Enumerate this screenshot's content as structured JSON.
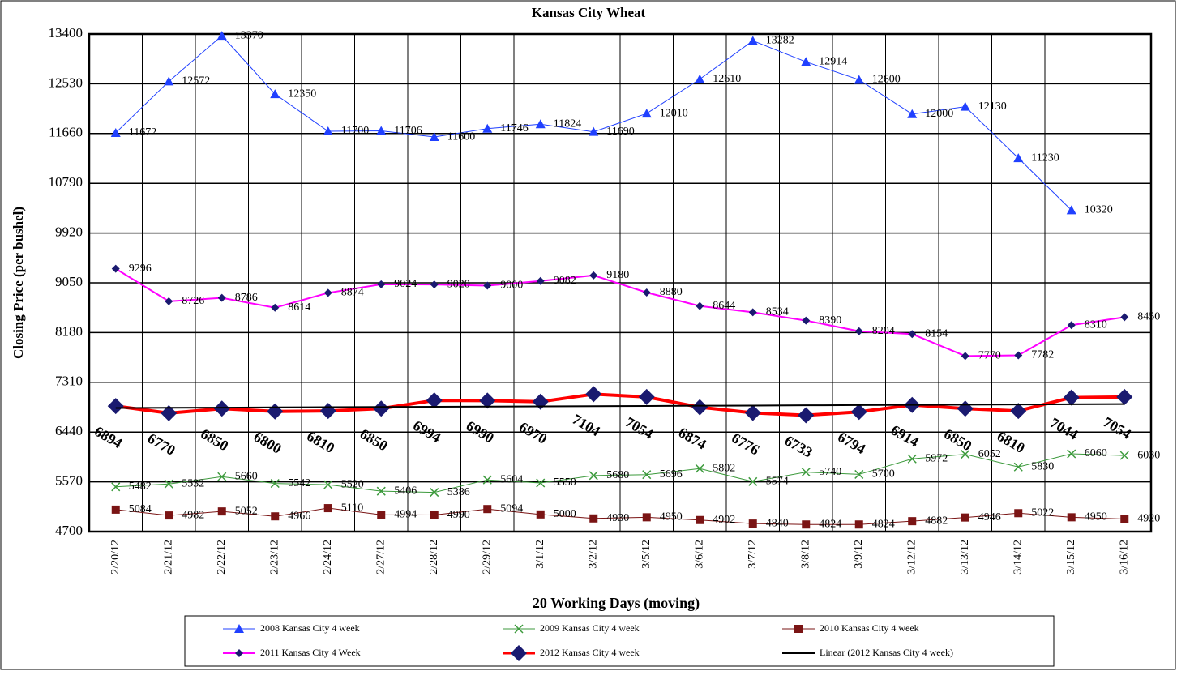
{
  "chart_data": {
    "type": "line",
    "title": "Kansas City Wheat",
    "x_label": "20 Working Days (moving)",
    "y_label": "Closing Price (per bushel)",
    "categories": [
      "2/20/12",
      "2/21/12",
      "2/22/12",
      "2/23/12",
      "2/24/12",
      "2/27/12",
      "2/28/12",
      "2/29/12",
      "3/1/12",
      "3/2/12",
      "3/5/12",
      "3/6/12",
      "3/7/12",
      "3/8/12",
      "3/9/12",
      "3/12/12",
      "3/13/12",
      "3/14/12",
      "3/15/12",
      "3/16/12"
    ],
    "ylim": [
      4700,
      13400
    ],
    "yticks": [
      4700,
      5570,
      6440,
      7310,
      8180,
      9050,
      9920,
      10790,
      11660,
      12530,
      13400
    ],
    "grid": true,
    "series": [
      {
        "name": "2008 Kansas City 4 week",
        "color": "#2040ff",
        "marker": "triangle",
        "marker_color": "#2040ff",
        "line_width": 1,
        "labels": "right",
        "values": [
          11672,
          12572,
          13370,
          12350,
          11700,
          11706,
          11600,
          11746,
          11824,
          11690,
          12010,
          12610,
          13282,
          12914,
          12600,
          12000,
          12130,
          11230,
          10320,
          null
        ]
      },
      {
        "name": "2009 Kansas City 4 week",
        "color": "#3c9a3c",
        "marker": "x",
        "marker_color": "#3c9a3c",
        "line_width": 1,
        "labels": "right",
        "values": [
          5482,
          5532,
          5660,
          5542,
          5520,
          5406,
          5386,
          5604,
          5550,
          5680,
          5696,
          5802,
          5574,
          5740,
          5700,
          5972,
          6052,
          5830,
          6060,
          6030
        ]
      },
      {
        "name": "2010 Kansas City 4 week",
        "color": "#7a1414",
        "marker": "square",
        "marker_color": "#7a1414",
        "line_width": 1,
        "labels": "right",
        "values": [
          5084,
          4982,
          5052,
          4966,
          5110,
          4994,
          4990,
          5094,
          5000,
          4930,
          4950,
          4902,
          4840,
          4824,
          4824,
          4882,
          4946,
          5022,
          4950,
          4920
        ]
      },
      {
        "name": "2011 Kansas City 4 Week",
        "color": "#ff00ff",
        "marker": "diamond",
        "marker_color": "#1a1a70",
        "line_width": 2,
        "labels": "right",
        "values": [
          9296,
          8726,
          8786,
          8614,
          8874,
          9024,
          9020,
          9000,
          9082,
          9180,
          8880,
          8644,
          8534,
          8390,
          8204,
          8154,
          7770,
          7782,
          8310,
          8450
        ]
      },
      {
        "name": "2012 Kansas City 4 week",
        "color": "#ff0000",
        "marker": "bigdiamond",
        "marker_color": "#1a1a70",
        "line_width": 4,
        "labels": "below",
        "values": [
          6894,
          6770,
          6850,
          6800,
          6810,
          6850,
          6994,
          6990,
          6970,
          7104,
          7054,
          6874,
          6776,
          6733,
          6794,
          6914,
          6850,
          6810,
          7044,
          7054
        ]
      },
      {
        "name": "Linear (2012 Kansas City 4 week)",
        "color": "#000000",
        "marker": "none",
        "marker_color": "#000000",
        "line_width": 2,
        "labels": "none",
        "values": [
          6860,
          6864,
          6867,
          6871,
          6875,
          6878,
          6882,
          6886,
          6889,
          6893,
          6897,
          6901,
          6904,
          6908,
          6912,
          6915,
          6919,
          6923,
          6926,
          6930
        ]
      }
    ]
  }
}
